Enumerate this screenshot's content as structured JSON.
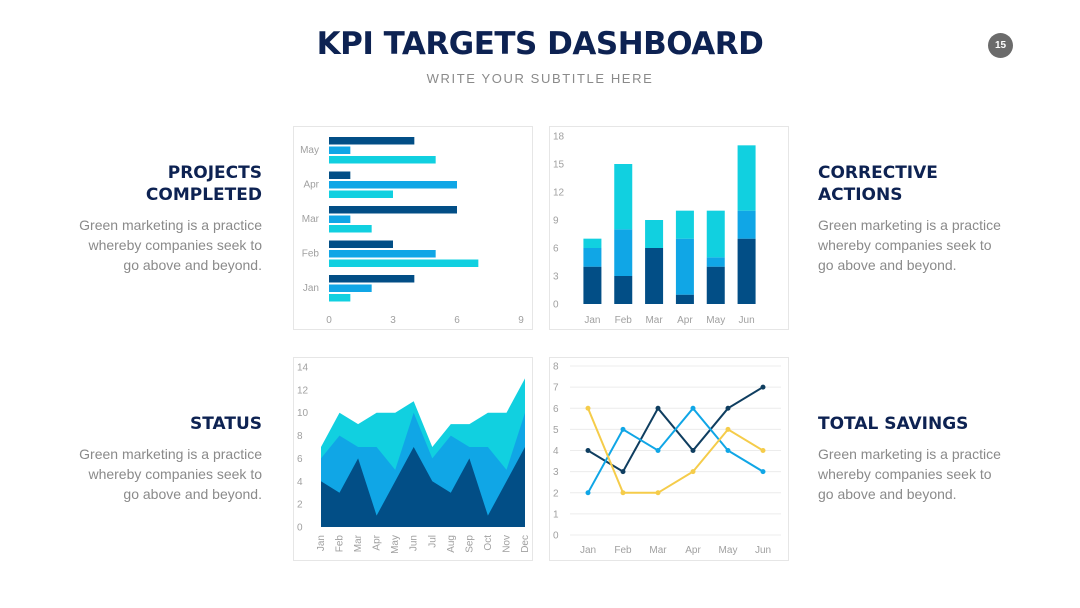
{
  "header": {
    "title": "KPI TARGETS DASHBOARD",
    "subtitle": "WRITE YOUR SUBTITLE HERE",
    "page_number": "15"
  },
  "sections": {
    "projects": {
      "title": "PROJECTS COMPLETED",
      "body": "Green marketing is a practice whereby companies seek to go above and beyond."
    },
    "corrective": {
      "title": "CORRECTIVE ACTIONS",
      "body": "Green marketing is a practice whereby companies seek to go above and beyond."
    },
    "status": {
      "title": "STATUS",
      "body": "Green marketing is a practice whereby companies seek to go above and beyond."
    },
    "savings": {
      "title": "TOTAL SAVINGS",
      "body": "Green marketing is a practice whereby companies seek to go above and beyond."
    }
  },
  "colors": {
    "cyan": "#11d0e0",
    "blue": "#10a6e6",
    "navy": "#024e86",
    "navy_line": "#0f3e60",
    "gold": "#f5cc4a",
    "title": "#0d2252"
  },
  "chart_data": [
    {
      "type": "bar",
      "orientation": "horizontal",
      "categories": [
        "Jan",
        "Feb",
        "Mar",
        "Apr",
        "May"
      ],
      "series": [
        {
          "values": [
            1,
            7,
            2,
            3,
            5
          ]
        },
        {
          "values": [
            2,
            5,
            1,
            6,
            1
          ]
        },
        {
          "values": [
            4,
            3,
            6,
            1,
            4
          ]
        }
      ],
      "xlim": [
        0,
        9
      ],
      "xticks": [
        0,
        3,
        6,
        9
      ],
      "grid": false
    },
    {
      "type": "bar",
      "stacked": true,
      "categories": [
        "Jan",
        "Feb",
        "Mar",
        "Apr",
        "May",
        "Jun"
      ],
      "series": [
        {
          "values": [
            4,
            3,
            6,
            1,
            4,
            7
          ]
        },
        {
          "values": [
            2,
            5,
            0,
            6,
            1,
            3
          ]
        },
        {
          "values": [
            1,
            7,
            3,
            3,
            5,
            7
          ]
        }
      ],
      "ylim": [
        0,
        18
      ],
      "yticks": [
        0,
        3,
        6,
        9,
        12,
        15,
        18
      ],
      "grid": false
    },
    {
      "type": "area",
      "stacked": false,
      "categories": [
        "Jan",
        "Feb",
        "Mar",
        "Apr",
        "May",
        "Jun",
        "Jul",
        "Aug",
        "Sep",
        "Oct",
        "Nov",
        "Dec"
      ],
      "series": [
        {
          "values": [
            7,
            10,
            9,
            10,
            10,
            11,
            7,
            9,
            9,
            10,
            10,
            13
          ]
        },
        {
          "values": [
            6,
            8,
            7,
            7,
            5,
            10,
            6,
            8,
            7,
            7,
            5,
            10
          ]
        },
        {
          "values": [
            4,
            3,
            6,
            1,
            4,
            7,
            4,
            3,
            6,
            1,
            4,
            7
          ]
        }
      ],
      "ylim": [
        0,
        14
      ],
      "yticks": [
        0,
        2,
        4,
        6,
        8,
        10,
        12,
        14
      ],
      "grid": false
    },
    {
      "type": "line",
      "categories": [
        "Jan",
        "Feb",
        "Mar",
        "Apr",
        "May",
        "Jun"
      ],
      "series": [
        {
          "values": [
            4,
            3,
            6,
            4,
            6,
            7
          ]
        },
        {
          "values": [
            2,
            5,
            4,
            6,
            4,
            3
          ]
        },
        {
          "values": [
            6,
            2,
            2,
            3,
            5,
            4
          ]
        }
      ],
      "ylim": [
        0,
        8
      ],
      "yticks": [
        0,
        1,
        2,
        3,
        4,
        5,
        6,
        7,
        8
      ],
      "grid": true
    }
  ]
}
